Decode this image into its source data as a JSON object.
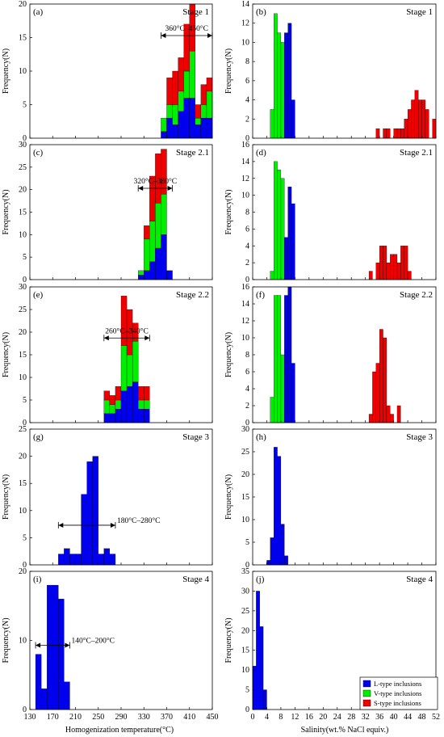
{
  "colors": {
    "L": "#0000ee",
    "V": "#00ee00",
    "S": "#ee0000"
  },
  "xlabel_left": "Homogenization temperature(°C)",
  "xlabel_right": "Salinity(wt.% NaCl equiv.)",
  "ylabel": "Frequency(N)",
  "legend": [
    {
      "key": "L",
      "label": "L-type inclusions"
    },
    {
      "key": "V",
      "label": "V-type inclusions"
    },
    {
      "key": "S",
      "label": "S-type inclusions"
    }
  ],
  "x_left": {
    "min": 130,
    "max": 450,
    "ticks": [
      130,
      170,
      210,
      250,
      290,
      330,
      370,
      410,
      450
    ]
  },
  "x_right": {
    "min": 0,
    "max": 52,
    "ticks": [
      0,
      4,
      8,
      12,
      16,
      20,
      24,
      28,
      32,
      36,
      40,
      44,
      48,
      52
    ]
  },
  "chart_data": [
    {
      "id": "a",
      "letter": "(a)",
      "stage": "Stage 1",
      "type": "bar",
      "ylim": [
        0,
        20
      ],
      "yticks": [
        0,
        5,
        10,
        15,
        20
      ],
      "bin": 10,
      "range": {
        "label": "360°C–450°C",
        "from": 360,
        "to": 450,
        "y": 15.3
      },
      "bars": [
        {
          "x": 360,
          "L": 1,
          "V": 2,
          "S": 0
        },
        {
          "x": 370,
          "L": 3,
          "V": 2,
          "S": 4
        },
        {
          "x": 380,
          "L": 2,
          "V": 3,
          "S": 5
        },
        {
          "x": 390,
          "L": 4,
          "V": 3,
          "S": 5
        },
        {
          "x": 400,
          "L": 6,
          "V": 4,
          "S": 7
        },
        {
          "x": 410,
          "L": 6,
          "V": 7,
          "S": 7
        },
        {
          "x": 420,
          "L": 2,
          "V": 1,
          "S": 2
        },
        {
          "x": 430,
          "L": 3,
          "V": 2,
          "S": 3
        },
        {
          "x": 440,
          "L": 3,
          "V": 4,
          "S": 2
        }
      ]
    },
    {
      "id": "b",
      "letter": "(b)",
      "stage": "Stage 1",
      "type": "bar",
      "ylim": [
        0,
        14
      ],
      "yticks": [
        0,
        2,
        4,
        6,
        8,
        10,
        12,
        14
      ],
      "bin": 1,
      "bars": [
        {
          "x": 5,
          "L": 0,
          "V": 3,
          "S": 0
        },
        {
          "x": 6,
          "L": 0,
          "V": 13,
          "S": 0
        },
        {
          "x": 7,
          "L": 0,
          "V": 11,
          "S": 0
        },
        {
          "x": 8,
          "L": 0,
          "V": 10,
          "S": 0
        },
        {
          "x": 9,
          "L": 11,
          "V": 0,
          "S": 0
        },
        {
          "x": 10,
          "L": 12,
          "V": 0,
          "S": 0
        },
        {
          "x": 11,
          "L": 4,
          "V": 0,
          "S": 0
        },
        {
          "x": 35,
          "L": 0,
          "V": 0,
          "S": 1
        },
        {
          "x": 37,
          "L": 0,
          "V": 0,
          "S": 1
        },
        {
          "x": 38,
          "L": 0,
          "V": 0,
          "S": 1
        },
        {
          "x": 40,
          "L": 0,
          "V": 0,
          "S": 1
        },
        {
          "x": 41,
          "L": 0,
          "V": 0,
          "S": 1
        },
        {
          "x": 42,
          "L": 0,
          "V": 0,
          "S": 1
        },
        {
          "x": 43,
          "L": 0,
          "V": 0,
          "S": 2
        },
        {
          "x": 44,
          "L": 0,
          "V": 0,
          "S": 3
        },
        {
          "x": 45,
          "L": 0,
          "V": 0,
          "S": 4
        },
        {
          "x": 46,
          "L": 0,
          "V": 0,
          "S": 5
        },
        {
          "x": 47,
          "L": 0,
          "V": 0,
          "S": 4
        },
        {
          "x": 48,
          "L": 0,
          "V": 0,
          "S": 4
        },
        {
          "x": 49,
          "L": 0,
          "V": 0,
          "S": 3
        },
        {
          "x": 51,
          "L": 0,
          "V": 0,
          "S": 2
        }
      ]
    },
    {
      "id": "c",
      "letter": "(c)",
      "stage": "Stage 2.1",
      "type": "bar",
      "ylim": [
        0,
        30
      ],
      "yticks": [
        0,
        5,
        10,
        15,
        20,
        25,
        30
      ],
      "bin": 10,
      "range": {
        "label": "320°C–380°C",
        "from": 320,
        "to": 380,
        "y": 20.3
      },
      "bars": [
        {
          "x": 320,
          "L": 1,
          "V": 1,
          "S": 0
        },
        {
          "x": 330,
          "L": 2,
          "V": 7,
          "S": 3
        },
        {
          "x": 340,
          "L": 4,
          "V": 9,
          "S": 10
        },
        {
          "x": 350,
          "L": 7,
          "V": 10,
          "S": 11
        },
        {
          "x": 360,
          "L": 10,
          "V": 9,
          "S": 10
        },
        {
          "x": 370,
          "L": 2,
          "V": 0,
          "S": 0
        }
      ]
    },
    {
      "id": "d",
      "letter": "(d)",
      "stage": "Stage 2.1",
      "type": "bar",
      "ylim": [
        0,
        16
      ],
      "yticks": [
        0,
        2,
        4,
        6,
        8,
        10,
        12,
        14,
        16
      ],
      "bin": 1,
      "bars": [
        {
          "x": 5,
          "L": 0,
          "V": 1,
          "S": 0
        },
        {
          "x": 6,
          "L": 0,
          "V": 14,
          "S": 0
        },
        {
          "x": 7,
          "L": 0,
          "V": 13,
          "S": 0
        },
        {
          "x": 8,
          "L": 0,
          "V": 12,
          "S": 0
        },
        {
          "x": 9,
          "L": 5,
          "V": 0,
          "S": 0
        },
        {
          "x": 10,
          "L": 11,
          "V": 0,
          "S": 0
        },
        {
          "x": 11,
          "L": 9,
          "V": 0,
          "S": 0
        },
        {
          "x": 33,
          "L": 0,
          "V": 0,
          "S": 1
        },
        {
          "x": 35,
          "L": 0,
          "V": 0,
          "S": 2
        },
        {
          "x": 36,
          "L": 0,
          "V": 0,
          "S": 4
        },
        {
          "x": 37,
          "L": 0,
          "V": 0,
          "S": 4
        },
        {
          "x": 38,
          "L": 0,
          "V": 0,
          "S": 2
        },
        {
          "x": 39,
          "L": 0,
          "V": 0,
          "S": 3
        },
        {
          "x": 40,
          "L": 0,
          "V": 0,
          "S": 3
        },
        {
          "x": 41,
          "L": 0,
          "V": 0,
          "S": 2
        },
        {
          "x": 42,
          "L": 0,
          "V": 0,
          "S": 4
        },
        {
          "x": 43,
          "L": 0,
          "V": 0,
          "S": 4
        },
        {
          "x": 44,
          "L": 0,
          "V": 0,
          "S": 1
        }
      ]
    },
    {
      "id": "e",
      "letter": "(e)",
      "stage": "Stage 2.2",
      "type": "bar",
      "ylim": [
        0,
        30
      ],
      "yticks": [
        0,
        5,
        10,
        15,
        20,
        25,
        30
      ],
      "bin": 10,
      "range": {
        "label": "260°C–340°C",
        "from": 260,
        "to": 340,
        "y": 18.7
      },
      "bars": [
        {
          "x": 260,
          "L": 2,
          "V": 3,
          "S": 2
        },
        {
          "x": 270,
          "L": 2,
          "V": 2,
          "S": 2
        },
        {
          "x": 280,
          "L": 3,
          "V": 2,
          "S": 3
        },
        {
          "x": 290,
          "L": 7,
          "V": 10,
          "S": 11
        },
        {
          "x": 300,
          "L": 8,
          "V": 7,
          "S": 10
        },
        {
          "x": 310,
          "L": 9,
          "V": 9,
          "S": 4
        },
        {
          "x": 320,
          "L": 3,
          "V": 2,
          "S": 3
        },
        {
          "x": 330,
          "L": 3,
          "V": 2,
          "S": 3
        }
      ]
    },
    {
      "id": "f",
      "letter": "(f)",
      "stage": "Stage 2.2",
      "type": "bar",
      "ylim": [
        0,
        16
      ],
      "yticks": [
        0,
        2,
        4,
        6,
        8,
        10,
        12,
        14,
        16
      ],
      "bin": 1,
      "bars": [
        {
          "x": 5,
          "L": 0,
          "V": 3,
          "S": 0
        },
        {
          "x": 6,
          "L": 0,
          "V": 15,
          "S": 0
        },
        {
          "x": 7,
          "L": 0,
          "V": 15,
          "S": 0
        },
        {
          "x": 8,
          "L": 0,
          "V": 8,
          "S": 0
        },
        {
          "x": 9,
          "L": 15,
          "V": 0,
          "S": 0
        },
        {
          "x": 10,
          "L": 16,
          "V": 0,
          "S": 0
        },
        {
          "x": 11,
          "L": 7,
          "V": 0,
          "S": 0
        },
        {
          "x": 33,
          "L": 0,
          "V": 0,
          "S": 1
        },
        {
          "x": 34,
          "L": 0,
          "V": 0,
          "S": 6
        },
        {
          "x": 35,
          "L": 0,
          "V": 0,
          "S": 7
        },
        {
          "x": 36,
          "L": 0,
          "V": 0,
          "S": 11
        },
        {
          "x": 37,
          "L": 0,
          "V": 0,
          "S": 10
        },
        {
          "x": 38,
          "L": 0,
          "V": 0,
          "S": 2
        },
        {
          "x": 39,
          "L": 0,
          "V": 0,
          "S": 1
        },
        {
          "x": 41,
          "L": 0,
          "V": 0,
          "S": 2
        }
      ]
    },
    {
      "id": "g",
      "letter": "(g)",
      "stage": "Stage 3",
      "type": "bar",
      "ylim": [
        0,
        25
      ],
      "yticks": [
        0,
        5,
        10,
        15,
        20,
        25
      ],
      "bin": 10,
      "range": {
        "label": "180°C–280°C",
        "from": 180,
        "to": 280,
        "y": 7.3
      },
      "bars": [
        {
          "x": 180,
          "L": 2,
          "V": 0,
          "S": 0
        },
        {
          "x": 190,
          "L": 3,
          "V": 0,
          "S": 0
        },
        {
          "x": 200,
          "L": 2,
          "V": 0,
          "S": 0
        },
        {
          "x": 210,
          "L": 2,
          "V": 0,
          "S": 0
        },
        {
          "x": 220,
          "L": 13,
          "V": 0,
          "S": 0
        },
        {
          "x": 230,
          "L": 19,
          "V": 0,
          "S": 0
        },
        {
          "x": 240,
          "L": 20,
          "V": 0,
          "S": 0
        },
        {
          "x": 250,
          "L": 2,
          "V": 0,
          "S": 0
        },
        {
          "x": 260,
          "L": 3,
          "V": 0,
          "S": 0
        },
        {
          "x": 270,
          "L": 2,
          "V": 0,
          "S": 0
        }
      ]
    },
    {
      "id": "h",
      "letter": "(h)",
      "stage": "Stage 3",
      "type": "bar",
      "ylim": [
        0,
        30
      ],
      "yticks": [
        0,
        5,
        10,
        15,
        20,
        25,
        30
      ],
      "bin": 1,
      "bars": [
        {
          "x": 4,
          "L": 1,
          "V": 0,
          "S": 0
        },
        {
          "x": 5,
          "L": 6,
          "V": 0,
          "S": 0
        },
        {
          "x": 6,
          "L": 26,
          "V": 0,
          "S": 0
        },
        {
          "x": 7,
          "L": 24,
          "V": 0,
          "S": 0
        },
        {
          "x": 8,
          "L": 9,
          "V": 0,
          "S": 0
        },
        {
          "x": 9,
          "L": 2,
          "V": 0,
          "S": 0
        }
      ]
    },
    {
      "id": "i",
      "letter": "(i)",
      "stage": "Stage 4",
      "type": "bar",
      "ylim": [
        0,
        20
      ],
      "yticks": [
        0,
        10,
        20
      ],
      "bin": 10,
      "range": {
        "label": "140°C–200°C",
        "from": 140,
        "to": 200,
        "y": 9.3
      },
      "bars": [
        {
          "x": 140,
          "L": 8,
          "V": 0,
          "S": 0
        },
        {
          "x": 150,
          "L": 3,
          "V": 0,
          "S": 0
        },
        {
          "x": 160,
          "L": 18,
          "V": 0,
          "S": 0
        },
        {
          "x": 170,
          "L": 18,
          "V": 0,
          "S": 0
        },
        {
          "x": 180,
          "L": 16,
          "V": 0,
          "S": 0
        },
        {
          "x": 190,
          "L": 4,
          "V": 0,
          "S": 0
        }
      ]
    },
    {
      "id": "j",
      "letter": "(j)",
      "stage": "Stage 4",
      "type": "bar",
      "ylim": [
        0,
        35
      ],
      "yticks": [
        0,
        5,
        10,
        15,
        20,
        25,
        30,
        35
      ],
      "bin": 1,
      "bars": [
        {
          "x": 0,
          "L": 11,
          "V": 0,
          "S": 0
        },
        {
          "x": 1,
          "L": 30,
          "V": 0,
          "S": 0
        },
        {
          "x": 2,
          "L": 21,
          "V": 0,
          "S": 0
        },
        {
          "x": 3,
          "L": 5,
          "V": 0,
          "S": 0
        }
      ]
    }
  ]
}
